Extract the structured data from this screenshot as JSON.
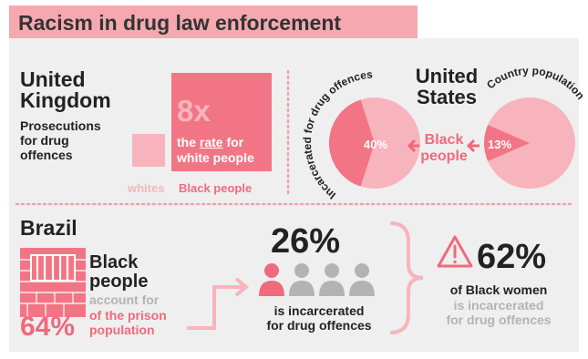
{
  "title": "Racism in drug law enforcement",
  "uk": {
    "heading": "United\nKingdom",
    "subtitle": "Prosecutions\nfor drug\noffences",
    "multiplier": "8x",
    "rate_line1_pre": "the ",
    "rate_word": "rate",
    "rate_line1_post": " for",
    "rate_line2": "white people",
    "label_whites": "whites",
    "label_black": "Black people"
  },
  "us": {
    "heading": "United\nStates",
    "arc_left": "Incarcerated for drug offences",
    "arc_right": "Country population",
    "pct_incarcerated": "40%",
    "pct_population": "13%",
    "center_label": "Black\npeople",
    "incarcerated_share": 0.4,
    "population_share": 0.13
  },
  "brazil": {
    "heading": "Brazil",
    "black_people": "Black\npeople",
    "account_for": "account for",
    "pct_prison": "64%",
    "of_prison": "of the prison\npopulation",
    "pct_drug": "26%",
    "drug_caption": "is incarcerated\nfor drug offences",
    "pct_women": "62%",
    "women_line1": "of Black women",
    "women_line2": "is incarcerated\nfor drug offences"
  },
  "colors": {
    "accent": "#f06a7c",
    "light": "#f7b4bd",
    "title_bar": "#f6a8b0",
    "grey": "#b3b3b3"
  }
}
